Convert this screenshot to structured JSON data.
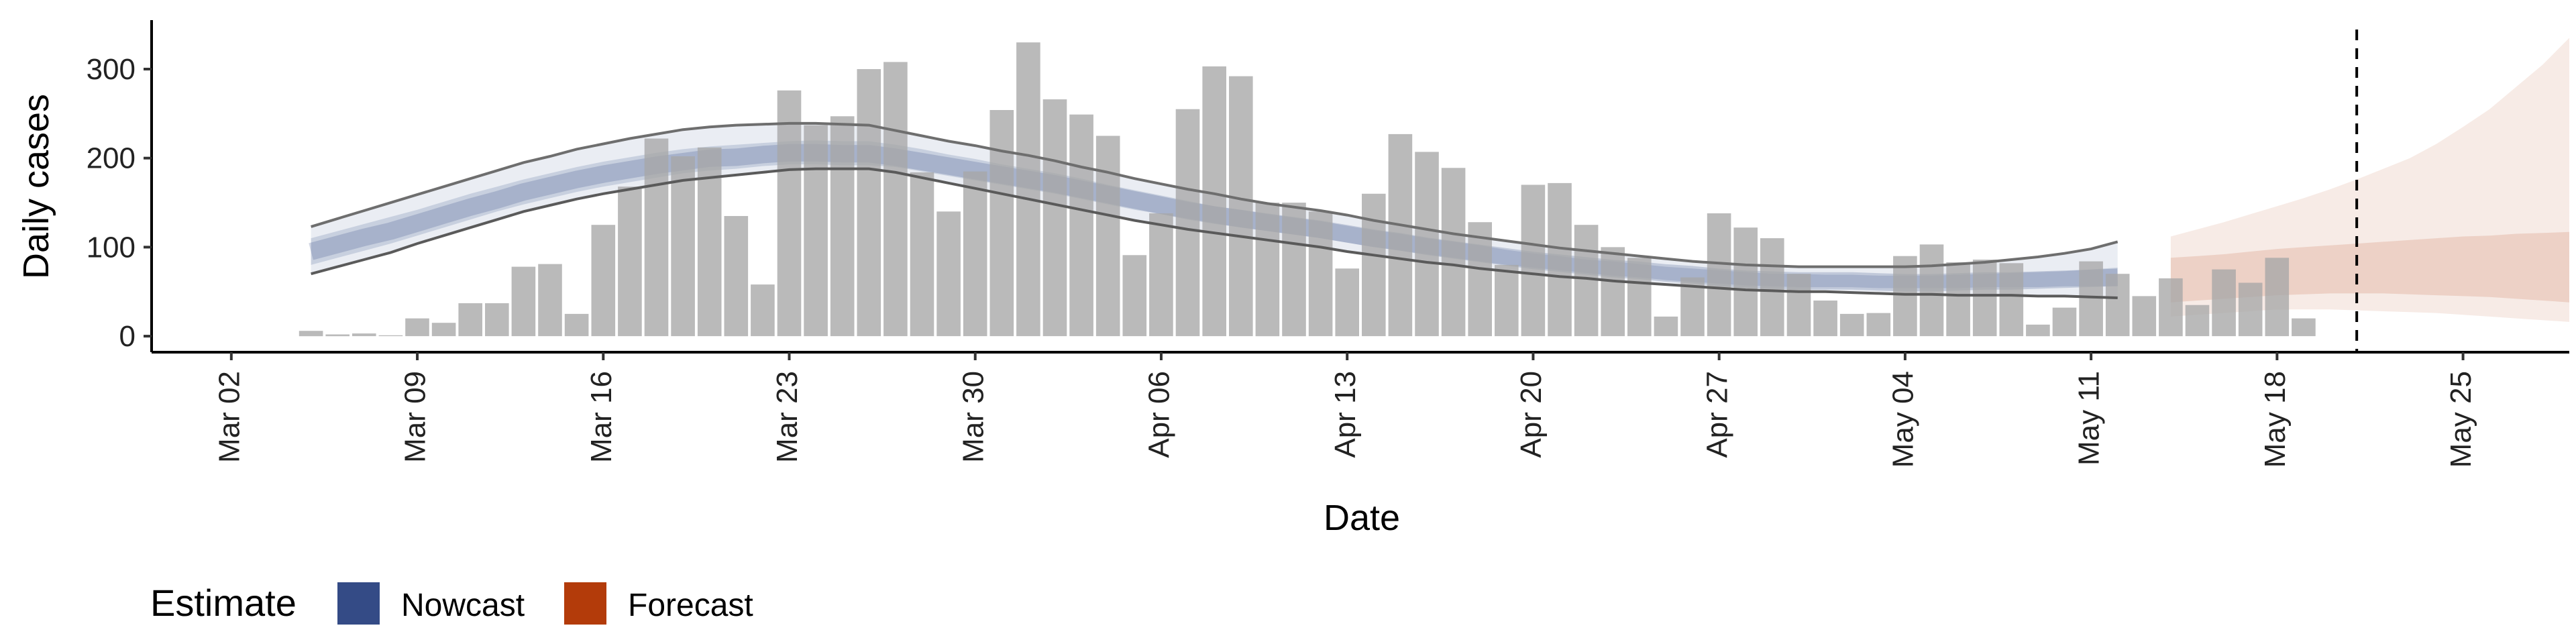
{
  "chart_data": {
    "type": "bar",
    "title": "",
    "xlabel": "Date",
    "ylabel": "Daily cases",
    "x_ticks": [
      "Mar 02",
      "Mar 09",
      "Mar 16",
      "Mar 23",
      "Mar 30",
      "Apr 06",
      "Apr 13",
      "Apr 20",
      "Apr 27",
      "May 04",
      "May 11",
      "May 18",
      "May 25"
    ],
    "y_ticks": [
      0,
      100,
      200,
      300
    ],
    "ylim": [
      -18,
      355
    ],
    "xlim": [
      "2020-02-28",
      "2020-05-29"
    ],
    "grid": false,
    "legend_position": "bottom-left",
    "bars": {
      "start_date": "2020-03-05",
      "values": [
        6,
        2,
        3,
        1,
        20,
        15,
        37,
        37,
        78,
        81,
        25,
        125,
        168,
        222,
        202,
        212,
        135,
        58,
        276,
        237,
        247,
        300,
        308,
        184,
        140,
        185,
        254,
        330,
        266,
        249,
        225,
        91,
        138,
        255,
        303,
        292,
        150,
        150,
        140,
        76,
        160,
        227,
        207,
        189,
        128,
        80,
        170,
        172,
        125,
        100,
        88,
        22,
        66,
        138,
        122,
        110,
        70,
        40,
        25,
        26,
        90,
        103,
        83,
        86,
        82,
        13,
        32,
        84,
        70,
        45,
        65,
        35,
        75,
        60,
        88,
        20
      ]
    },
    "nowcast": {
      "name": "Nowcast",
      "color": "#344b86",
      "start_date": "2020-03-05",
      "median": [
        95,
        103,
        111,
        118,
        127,
        136,
        145,
        153,
        162,
        169,
        176,
        182,
        187,
        192,
        196,
        200,
        201,
        204,
        206,
        206,
        205,
        205,
        201,
        196,
        191,
        186,
        181,
        176,
        171,
        165,
        159,
        153,
        147,
        141,
        136,
        132,
        128,
        124,
        120,
        115,
        110,
        106,
        101,
        97,
        93,
        89,
        85,
        82,
        79,
        76,
        74,
        71,
        69,
        66,
        64,
        63,
        62,
        62,
        62,
        61,
        60,
        60,
        61,
        62,
        62,
        63,
        64,
        65,
        66
      ],
      "inner_band": {
        "lower": [
          80,
          88,
          96,
          104,
          113,
          122,
          131,
          140,
          148,
          155,
          162,
          168,
          173,
          178,
          183,
          186,
          188,
          191,
          193,
          193,
          192,
          192,
          190,
          185,
          180,
          175,
          170,
          165,
          160,
          154,
          148,
          142,
          137,
          132,
          127,
          122,
          118,
          114,
          110,
          105,
          100,
          96,
          92,
          88,
          84,
          80,
          77,
          74,
          71,
          68,
          66,
          63,
          61,
          59,
          57,
          56,
          55,
          55,
          55,
          54,
          54,
          54,
          54,
          55,
          55,
          55,
          56,
          56,
          56
        ],
        "upper": [
          110,
          118,
          126,
          134,
          142,
          151,
          160,
          168,
          176,
          183,
          190,
          196,
          201,
          206,
          210,
          213,
          215,
          217,
          219,
          220,
          219,
          219,
          215,
          210,
          204,
          199,
          193,
          188,
          183,
          177,
          170,
          164,
          158,
          152,
          146,
          142,
          137,
          133,
          129,
          124,
          119,
          115,
          110,
          106,
          102,
          97,
          93,
          90,
          86,
          84,
          81,
          78,
          76,
          74,
          72,
          70,
          70,
          69,
          69,
          68,
          68,
          68,
          69,
          70,
          71,
          72,
          73,
          75,
          77
        ]
      },
      "outer_band": {
        "lower": [
          70,
          78,
          86,
          94,
          104,
          113,
          122,
          131,
          140,
          147,
          154,
          160,
          165,
          170,
          175,
          178,
          181,
          184,
          187,
          188,
          188,
          188,
          184,
          178,
          172,
          166,
          160,
          154,
          148,
          142,
          136,
          130,
          125,
          120,
          116,
          112,
          108,
          104,
          100,
          95,
          91,
          87,
          83,
          80,
          76,
          73,
          70,
          67,
          65,
          62,
          60,
          58,
          56,
          54,
          52,
          51,
          50,
          50,
          49,
          48,
          47,
          47,
          46,
          46,
          46,
          45,
          45,
          44,
          43
        ],
        "upper": [
          123,
          132,
          141,
          150,
          159,
          168,
          177,
          186,
          195,
          202,
          210,
          216,
          222,
          227,
          232,
          235,
          237,
          238,
          239,
          239,
          238,
          237,
          231,
          225,
          219,
          214,
          208,
          203,
          197,
          190,
          184,
          177,
          171,
          165,
          160,
          154,
          149,
          145,
          141,
          136,
          130,
          125,
          120,
          115,
          111,
          107,
          103,
          99,
          96,
          93,
          90,
          87,
          84,
          82,
          80,
          79,
          78,
          78,
          78,
          78,
          78,
          79,
          81,
          83,
          86,
          89,
          93,
          98,
          106
        ]
      }
    },
    "forecast": {
      "name": "Forecast",
      "color": "#b33b0a",
      "start_date": "2020-05-14",
      "median": [
        64,
        65,
        66,
        68,
        70,
        72,
        73,
        74,
        75,
        76,
        76,
        76,
        76,
        75,
        74,
        72
      ],
      "inner_band": {
        "lower": [
          38,
          40,
          42,
          44,
          46,
          47,
          48,
          48,
          48,
          47,
          46,
          45,
          44,
          42,
          40,
          38
        ],
        "upper": [
          88,
          90,
          92,
          95,
          98,
          100,
          102,
          104,
          106,
          108,
          110,
          112,
          113,
          115,
          116,
          117
        ]
      },
      "outer_band": {
        "lower": [
          22,
          24,
          26,
          28,
          30,
          30,
          30,
          29,
          28,
          27,
          26,
          24,
          22,
          20,
          18,
          16
        ],
        "upper": [
          112,
          120,
          128,
          137,
          146,
          155,
          165,
          176,
          188,
          200,
          216,
          235,
          255,
          280,
          305,
          335
        ]
      }
    },
    "vline": {
      "date": "2020-05-21",
      "style": "dashed"
    },
    "legend": {
      "title": "Estimate",
      "items": [
        {
          "label": "Nowcast",
          "color": "#344b86"
        },
        {
          "label": "Forecast",
          "color": "#b33b0a"
        }
      ]
    }
  }
}
